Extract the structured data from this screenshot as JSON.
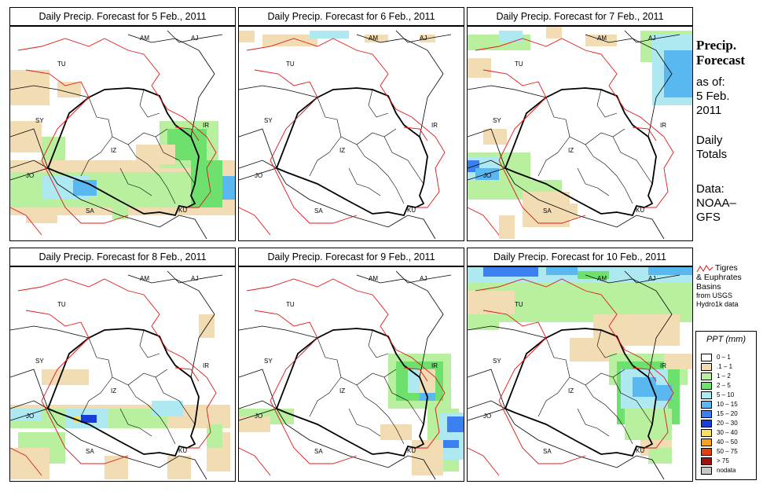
{
  "panels": [
    {
      "title": "Daily Precip. Forecast for  5 Feb., 2011"
    },
    {
      "title": "Daily Precip. Forecast for  6 Feb., 2011"
    },
    {
      "title": "Daily Precip. Forecast for  7 Feb., 2011"
    },
    {
      "title": "Daily Precip. Forecast for  8 Feb., 2011"
    },
    {
      "title": "Daily Precip. Forecast for  9 Feb., 2011"
    },
    {
      "title": "Daily Precip. Forecast for  10 Feb., 2011"
    }
  ],
  "map_labels": [
    "AM",
    "AJ",
    "TU",
    "SY",
    "IR",
    "JO",
    "SA",
    "KU",
    "IZ"
  ],
  "sidebar": {
    "heading_1": "Precip.",
    "heading_2": "Forecast",
    "asof_1": "as of:",
    "asof_2": "5 Feb.",
    "asof_3": "2011",
    "daily_1": "Daily",
    "daily_2": "Totals",
    "data_1": "Data:",
    "data_2": "NOAA–",
    "data_3": "GFS"
  },
  "basin_note": {
    "line1": "Tigres",
    "line2": "& Euphrates",
    "line3": "Basins",
    "line4": "from USGS",
    "line5": "Hydro1k data"
  },
  "legend": {
    "title": "PPT (mm)",
    "items": [
      {
        "label": "0 – 1",
        "color": "#ffffff"
      },
      {
        "label": ".1 – 1",
        "color": "#f2dcb4"
      },
      {
        "label": "1 – 2",
        "color": "#b8f0a0"
      },
      {
        "label": "2 – 5",
        "color": "#6ee06e"
      },
      {
        "label": "5 – 10",
        "color": "#aee8f0"
      },
      {
        "label": "10 – 15",
        "color": "#5ab8f0"
      },
      {
        "label": "15 – 20",
        "color": "#3a80f0"
      },
      {
        "label": "20 – 30",
        "color": "#1a3cd8"
      },
      {
        "label": "30 – 40",
        "color": "#f8e060"
      },
      {
        "label": "40 – 50",
        "color": "#f8a020"
      },
      {
        "label": "50 – 75",
        "color": "#e04010"
      },
      {
        "label": "> 75",
        "color": "#a01010"
      },
      {
        "label": "nodata",
        "color": "#c8c8c8"
      }
    ]
  },
  "colors": {
    "basin": "#e01818",
    "border": "#000000"
  }
}
